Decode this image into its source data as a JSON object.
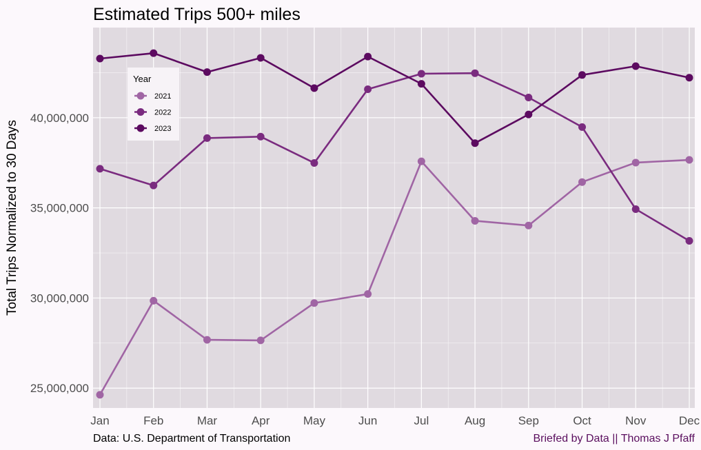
{
  "chart_data": {
    "type": "line",
    "title": "Estimated Trips 500+ miles",
    "xlabel": "",
    "ylabel": "Total Trips Normalized to 30 Days",
    "categories": [
      "Jan",
      "Feb",
      "Mar",
      "Apr",
      "May",
      "Jun",
      "Jul",
      "Aug",
      "Sep",
      "Oct",
      "Nov",
      "Dec"
    ],
    "yticks": [
      25000000,
      30000000,
      35000000,
      40000000
    ],
    "ytick_labels": [
      "25,000,000",
      "30,000,000",
      "35,000,000",
      "40,000,000"
    ],
    "ylim": [
      23900000,
      45000000
    ],
    "grid": true,
    "legend": {
      "title": "Year",
      "placement": "top-left"
    },
    "series": [
      {
        "name": "2021",
        "color": "#a065a4",
        "values": [
          24630000,
          29850000,
          27680000,
          27650000,
          29720000,
          30220000,
          37580000,
          34280000,
          34020000,
          36430000,
          37510000,
          37660000
        ]
      },
      {
        "name": "2022",
        "color": "#7a2b7f",
        "values": [
          37170000,
          36240000,
          38870000,
          38950000,
          37490000,
          41580000,
          42440000,
          42470000,
          41120000,
          39480000,
          34930000,
          33170000
        ]
      },
      {
        "name": "2023",
        "color": "#5c0a60",
        "values": [
          43280000,
          43580000,
          42530000,
          43320000,
          41640000,
          43390000,
          41880000,
          38590000,
          40180000,
          42370000,
          42860000,
          42220000
        ]
      }
    ],
    "caption_left": "Data: U.S. Department of Transportation",
    "caption_right": "Briefed by Data || Thomas J Pfaff"
  }
}
